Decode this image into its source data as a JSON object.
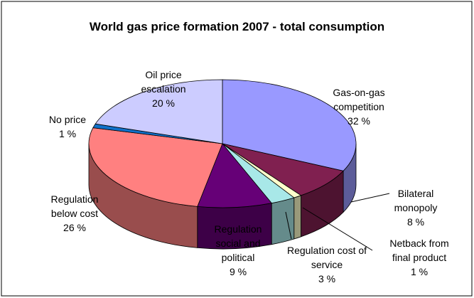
{
  "chart_data": {
    "type": "pie",
    "title": "World gas price formation 2007 - total consumption",
    "categories": [
      "Gas-on-gas competition",
      "Bilateral monopoly",
      "Netback from final product",
      "Regulation cost of service",
      "Regulation social and political",
      "Regulation below cost",
      "No price",
      "Oil price escalation"
    ],
    "values": [
      32,
      8,
      1,
      3,
      9,
      26,
      1,
      20
    ],
    "value_labels": [
      "32 %",
      "8 %",
      "1 %",
      "3 %",
      "9 %",
      "26 %",
      "1 %",
      "20 %"
    ],
    "colors": [
      "#9999ff",
      "#802050",
      "#ffffcc",
      "#a8e8e8",
      "#660077",
      "#ff8080",
      "#1070c8",
      "#ccccff"
    ]
  }
}
